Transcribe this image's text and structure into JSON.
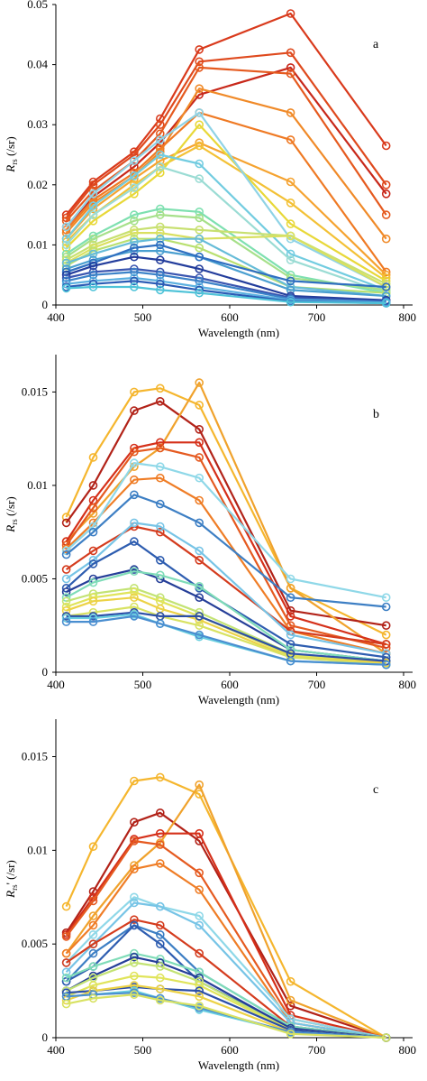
{
  "chart_data": [
    {
      "type": "line",
      "panel_label": "a",
      "xlabel": "Wavelength (nm)",
      "ylabel": {
        "main": "R",
        "sub": "rs",
        "unit": " (/sr)"
      },
      "xlim": [
        400,
        800
      ],
      "ylim": [
        0,
        0.05
      ],
      "xticks": [
        400,
        500,
        600,
        700,
        800
      ],
      "xtick_labels": [
        "400",
        "500",
        "600",
        "700",
        "800"
      ],
      "yticks": [
        0,
        0.01,
        0.02,
        0.03,
        0.04,
        0.05
      ],
      "ytick_labels": [
        "0",
        "0.01",
        "0.02",
        "0.03",
        "0.04",
        "0.05"
      ],
      "grid": false,
      "x": [
        412,
        443,
        490,
        520,
        565,
        670,
        780
      ],
      "series": [
        {
          "color": "#d93a1c",
          "values": [
            0.015,
            0.0205,
            0.0255,
            0.031,
            0.0425,
            0.0485,
            0.0265
          ]
        },
        {
          "color": "#df4a1e",
          "values": [
            0.0145,
            0.02,
            0.025,
            0.03,
            0.0405,
            0.042,
            0.02
          ]
        },
        {
          "color": "#c8281a",
          "values": [
            0.013,
            0.018,
            0.023,
            0.027,
            0.035,
            0.0395,
            0.0185
          ]
        },
        {
          "color": "#e55a1f",
          "values": [
            0.014,
            0.019,
            0.024,
            0.0285,
            0.0395,
            0.0385,
            0.015
          ]
        },
        {
          "color": "#f08a28",
          "values": [
            0.012,
            0.017,
            0.0215,
            0.0255,
            0.036,
            0.032,
            0.011
          ]
        },
        {
          "color": "#ef7a24",
          "values": [
            0.0125,
            0.0175,
            0.022,
            0.026,
            0.032,
            0.0275,
            0.0055
          ]
        },
        {
          "color": "#f5a330",
          "values": [
            0.011,
            0.016,
            0.021,
            0.024,
            0.027,
            0.0205,
            0.005
          ]
        },
        {
          "color": "#f3c136",
          "values": [
            0.0105,
            0.015,
            0.02,
            0.023,
            0.0265,
            0.017,
            0.0045
          ]
        },
        {
          "color": "#e8d838",
          "values": [
            0.0095,
            0.014,
            0.0185,
            0.022,
            0.03,
            0.0135,
            0.004
          ]
        },
        {
          "color": "#8fd3e6",
          "values": [
            0.013,
            0.0185,
            0.024,
            0.0275,
            0.032,
            0.011,
            0.003
          ]
        },
        {
          "color": "#72cce0",
          "values": [
            0.011,
            0.0165,
            0.0215,
            0.025,
            0.0235,
            0.0085,
            0.0025
          ]
        },
        {
          "color": "#9bdcd4",
          "values": [
            0.01,
            0.015,
            0.0195,
            0.023,
            0.021,
            0.0075,
            0.002
          ]
        },
        {
          "color": "#7ee0b0",
          "values": [
            0.0085,
            0.0115,
            0.015,
            0.016,
            0.0155,
            0.005,
            0.002
          ]
        },
        {
          "color": "#a6e08a",
          "values": [
            0.008,
            0.011,
            0.014,
            0.015,
            0.0145,
            0.0045,
            0.0025
          ]
        },
        {
          "color": "#c8e070",
          "values": [
            0.0075,
            0.01,
            0.0125,
            0.013,
            0.0125,
            0.0115,
            0.0035
          ]
        },
        {
          "color": "#d9e060",
          "values": [
            0.007,
            0.0095,
            0.012,
            0.012,
            0.011,
            0.0115,
            0.003
          ]
        },
        {
          "color": "#b9e070",
          "values": [
            0.0065,
            0.009,
            0.011,
            0.011,
            0.0095,
            0.003,
            0.002
          ]
        },
        {
          "color": "#66bcd8",
          "values": [
            0.007,
            0.0085,
            0.0105,
            0.011,
            0.011,
            0.003,
            0.0015
          ]
        },
        {
          "color": "#4a9fd0",
          "values": [
            0.006,
            0.0075,
            0.009,
            0.009,
            0.008,
            0.0025,
            0.0015
          ]
        },
        {
          "color": "#2f6fc0",
          "values": [
            0.0055,
            0.007,
            0.0095,
            0.01,
            0.008,
            0.004,
            0.003
          ]
        },
        {
          "color": "#233d9c",
          "values": [
            0.005,
            0.0065,
            0.008,
            0.0075,
            0.006,
            0.0015,
            0.0008
          ]
        },
        {
          "color": "#3a55b0",
          "values": [
            0.0045,
            0.0055,
            0.006,
            0.0055,
            0.0045,
            0.0012,
            0.0006
          ]
        },
        {
          "color": "#3b82c8",
          "values": [
            0.004,
            0.005,
            0.0055,
            0.005,
            0.004,
            0.001,
            0.0005
          ]
        },
        {
          "color": "#5ab0e0",
          "values": [
            0.0035,
            0.004,
            0.0045,
            0.004,
            0.003,
            0.0008,
            0.0004
          ]
        },
        {
          "color": "#2a5bb5",
          "values": [
            0.003,
            0.0035,
            0.004,
            0.0035,
            0.0025,
            0.0006,
            0.0003
          ]
        },
        {
          "color": "#4fc3d8",
          "values": [
            0.0028,
            0.003,
            0.003,
            0.0025,
            0.002,
            0.0005,
            0.0003
          ]
        }
      ]
    },
    {
      "type": "line",
      "panel_label": "b",
      "xlabel": "Wavelength (nm)",
      "ylabel": {
        "main": "R",
        "sub": "rs",
        "unit": " (/sr)"
      },
      "xlim": [
        400,
        800
      ],
      "ylim": [
        0,
        0.017
      ],
      "xticks": [
        400,
        500,
        600,
        700,
        800
      ],
      "xtick_labels": [
        "400",
        "500",
        "600",
        "700",
        "800"
      ],
      "yticks": [
        0,
        0.005,
        0.01,
        0.015
      ],
      "ytick_labels": [
        "0",
        "0.005",
        "0.01",
        "0.015"
      ],
      "grid": false,
      "x": [
        412,
        443,
        490,
        520,
        565,
        670,
        780
      ],
      "series": [
        {
          "color": "#f5b62e",
          "values": [
            0.0083,
            0.0115,
            0.015,
            0.0152,
            0.0143,
            0.0045,
            0.002
          ]
        },
        {
          "color": "#b22218",
          "values": [
            0.008,
            0.01,
            0.014,
            0.0145,
            0.013,
            0.0033,
            0.0025
          ]
        },
        {
          "color": "#f0a22c",
          "values": [
            0.007,
            0.0085,
            0.011,
            0.012,
            0.0155,
            0.0045,
            0.001
          ]
        },
        {
          "color": "#d5301a",
          "values": [
            0.007,
            0.0092,
            0.012,
            0.0123,
            0.0123,
            0.003,
            0.0015
          ]
        },
        {
          "color": "#e55a20",
          "values": [
            0.0068,
            0.0088,
            0.0118,
            0.012,
            0.0115,
            0.0025,
            0.0013
          ]
        },
        {
          "color": "#ef7d26",
          "values": [
            0.0066,
            0.008,
            0.0103,
            0.0104,
            0.0092,
            0.0022,
            0.001
          ]
        },
        {
          "color": "#8fd8e8",
          "values": [
            0.0065,
            0.0078,
            0.0112,
            0.011,
            0.0104,
            0.005,
            0.004
          ]
        },
        {
          "color": "#3d7fc4",
          "values": [
            0.0063,
            0.0075,
            0.0095,
            0.009,
            0.008,
            0.004,
            0.0035
          ]
        },
        {
          "color": "#d43c1e",
          "values": [
            0.0055,
            0.0065,
            0.0078,
            0.0075,
            0.006,
            0.0022,
            0.0015
          ]
        },
        {
          "color": "#77c4e6",
          "values": [
            0.005,
            0.006,
            0.008,
            0.0078,
            0.0065,
            0.002,
            0.001
          ]
        },
        {
          "color": "#2e5db0",
          "values": [
            0.0045,
            0.0058,
            0.007,
            0.006,
            0.0045,
            0.0015,
            0.0008
          ]
        },
        {
          "color": "#253e98",
          "values": [
            0.0043,
            0.005,
            0.0055,
            0.005,
            0.004,
            0.0012,
            0.0006
          ]
        },
        {
          "color": "#7fdcb8",
          "values": [
            0.004,
            0.0048,
            0.0054,
            0.0052,
            0.0046,
            0.0012,
            0.0006
          ]
        },
        {
          "color": "#c3e374",
          "values": [
            0.0038,
            0.0042,
            0.0045,
            0.004,
            0.0032,
            0.001,
            0.0005
          ]
        },
        {
          "color": "#e0e45a",
          "values": [
            0.0035,
            0.004,
            0.0043,
            0.0038,
            0.003,
            0.0009,
            0.0005
          ]
        },
        {
          "color": "#ecd246",
          "values": [
            0.0033,
            0.0038,
            0.004,
            0.0034,
            0.0028,
            0.0008,
            0.0005
          ]
        },
        {
          "color": "#d8e262",
          "values": [
            0.003,
            0.0032,
            0.0035,
            0.003,
            0.0025,
            0.0008,
            0.0004
          ]
        },
        {
          "color": "#2c4fa8",
          "values": [
            0.003,
            0.003,
            0.0032,
            0.003,
            0.003,
            0.001,
            0.0006
          ]
        },
        {
          "color": "#6ad0e0",
          "values": [
            0.0029,
            0.0029,
            0.0031,
            0.0026,
            0.0019,
            0.0006,
            0.0004
          ]
        },
        {
          "color": "#4a8ed0",
          "values": [
            0.0027,
            0.0027,
            0.003,
            0.0026,
            0.002,
            0.0006,
            0.0004
          ]
        }
      ]
    },
    {
      "type": "line",
      "panel_label": "c",
      "xlabel": "Wavelength (nm)",
      "ylabel": {
        "main": "R",
        "sub": "rs",
        "unit": "' (/sr)"
      },
      "xlim": [
        400,
        800
      ],
      "ylim": [
        0,
        0.017
      ],
      "xticks": [
        400,
        500,
        600,
        700,
        800
      ],
      "xtick_labels": [
        "400",
        "500",
        "600",
        "700",
        "800"
      ],
      "yticks": [
        0,
        0.005,
        0.01,
        0.015
      ],
      "ytick_labels": [
        "0",
        "0.005",
        "0.01",
        "0.015"
      ],
      "grid": false,
      "x": [
        412,
        443,
        490,
        520,
        565,
        670,
        780
      ],
      "series": [
        {
          "color": "#f5b62e",
          "values": [
            0.007,
            0.0102,
            0.0137,
            0.0139,
            0.013,
            0.003,
            0.0
          ]
        },
        {
          "color": "#b22218",
          "values": [
            0.0056,
            0.0078,
            0.0115,
            0.012,
            0.0105,
            0.0017,
            0.0
          ]
        },
        {
          "color": "#f0a22c",
          "values": [
            0.0045,
            0.0065,
            0.0092,
            0.0104,
            0.0135,
            0.002,
            0.0
          ]
        },
        {
          "color": "#d5301a",
          "values": [
            0.0055,
            0.0075,
            0.0106,
            0.0109,
            0.0109,
            0.0012,
            0.0
          ]
        },
        {
          "color": "#e55a20",
          "values": [
            0.0054,
            0.0073,
            0.0105,
            0.0103,
            0.0088,
            0.001,
            0.0
          ]
        },
        {
          "color": "#ef7d26",
          "values": [
            0.0045,
            0.006,
            0.009,
            0.0093,
            0.0079,
            0.0008,
            0.0
          ]
        },
        {
          "color": "#8fd8e8",
          "values": [
            0.004,
            0.0055,
            0.0075,
            0.007,
            0.0065,
            0.001,
            0.0
          ]
        },
        {
          "color": "#77c4e6",
          "values": [
            0.0035,
            0.005,
            0.0072,
            0.007,
            0.006,
            0.0008,
            0.0
          ]
        },
        {
          "color": "#d43c1e",
          "values": [
            0.004,
            0.005,
            0.0063,
            0.006,
            0.0045,
            0.0006,
            0.0
          ]
        },
        {
          "color": "#3d7fc4",
          "values": [
            0.003,
            0.0045,
            0.006,
            0.0055,
            0.0035,
            0.0006,
            0.0
          ]
        },
        {
          "color": "#2e5db0",
          "values": [
            0.003,
            0.0038,
            0.006,
            0.005,
            0.003,
            0.0005,
            0.0
          ]
        },
        {
          "color": "#7fdcb8",
          "values": [
            0.0032,
            0.0038,
            0.0045,
            0.0042,
            0.0035,
            0.0006,
            0.0
          ]
        },
        {
          "color": "#253e98",
          "values": [
            0.0025,
            0.0033,
            0.0043,
            0.004,
            0.0032,
            0.0005,
            0.0
          ]
        },
        {
          "color": "#c3e374",
          "values": [
            0.0025,
            0.0032,
            0.004,
            0.0038,
            0.003,
            0.0004,
            0.0
          ]
        },
        {
          "color": "#e0e45a",
          "values": [
            0.0022,
            0.0028,
            0.0033,
            0.0032,
            0.0028,
            0.0004,
            0.0
          ]
        },
        {
          "color": "#2c4fa8",
          "values": [
            0.0024,
            0.0025,
            0.0027,
            0.0026,
            0.0025,
            0.0004,
            0.0
          ]
        },
        {
          "color": "#ecd246",
          "values": [
            0.002,
            0.0025,
            0.0028,
            0.0026,
            0.0022,
            0.0003,
            0.0
          ]
        },
        {
          "color": "#6ad0e0",
          "values": [
            0.0022,
            0.0023,
            0.0025,
            0.0021,
            0.0015,
            0.0003,
            0.0
          ]
        },
        {
          "color": "#4a8ed0",
          "values": [
            0.0022,
            0.0023,
            0.0024,
            0.0021,
            0.0016,
            0.0003,
            0.0
          ]
        },
        {
          "color": "#d8e262",
          "values": [
            0.0018,
            0.0021,
            0.0023,
            0.002,
            0.0017,
            0.0002,
            0.0
          ]
        }
      ]
    }
  ]
}
